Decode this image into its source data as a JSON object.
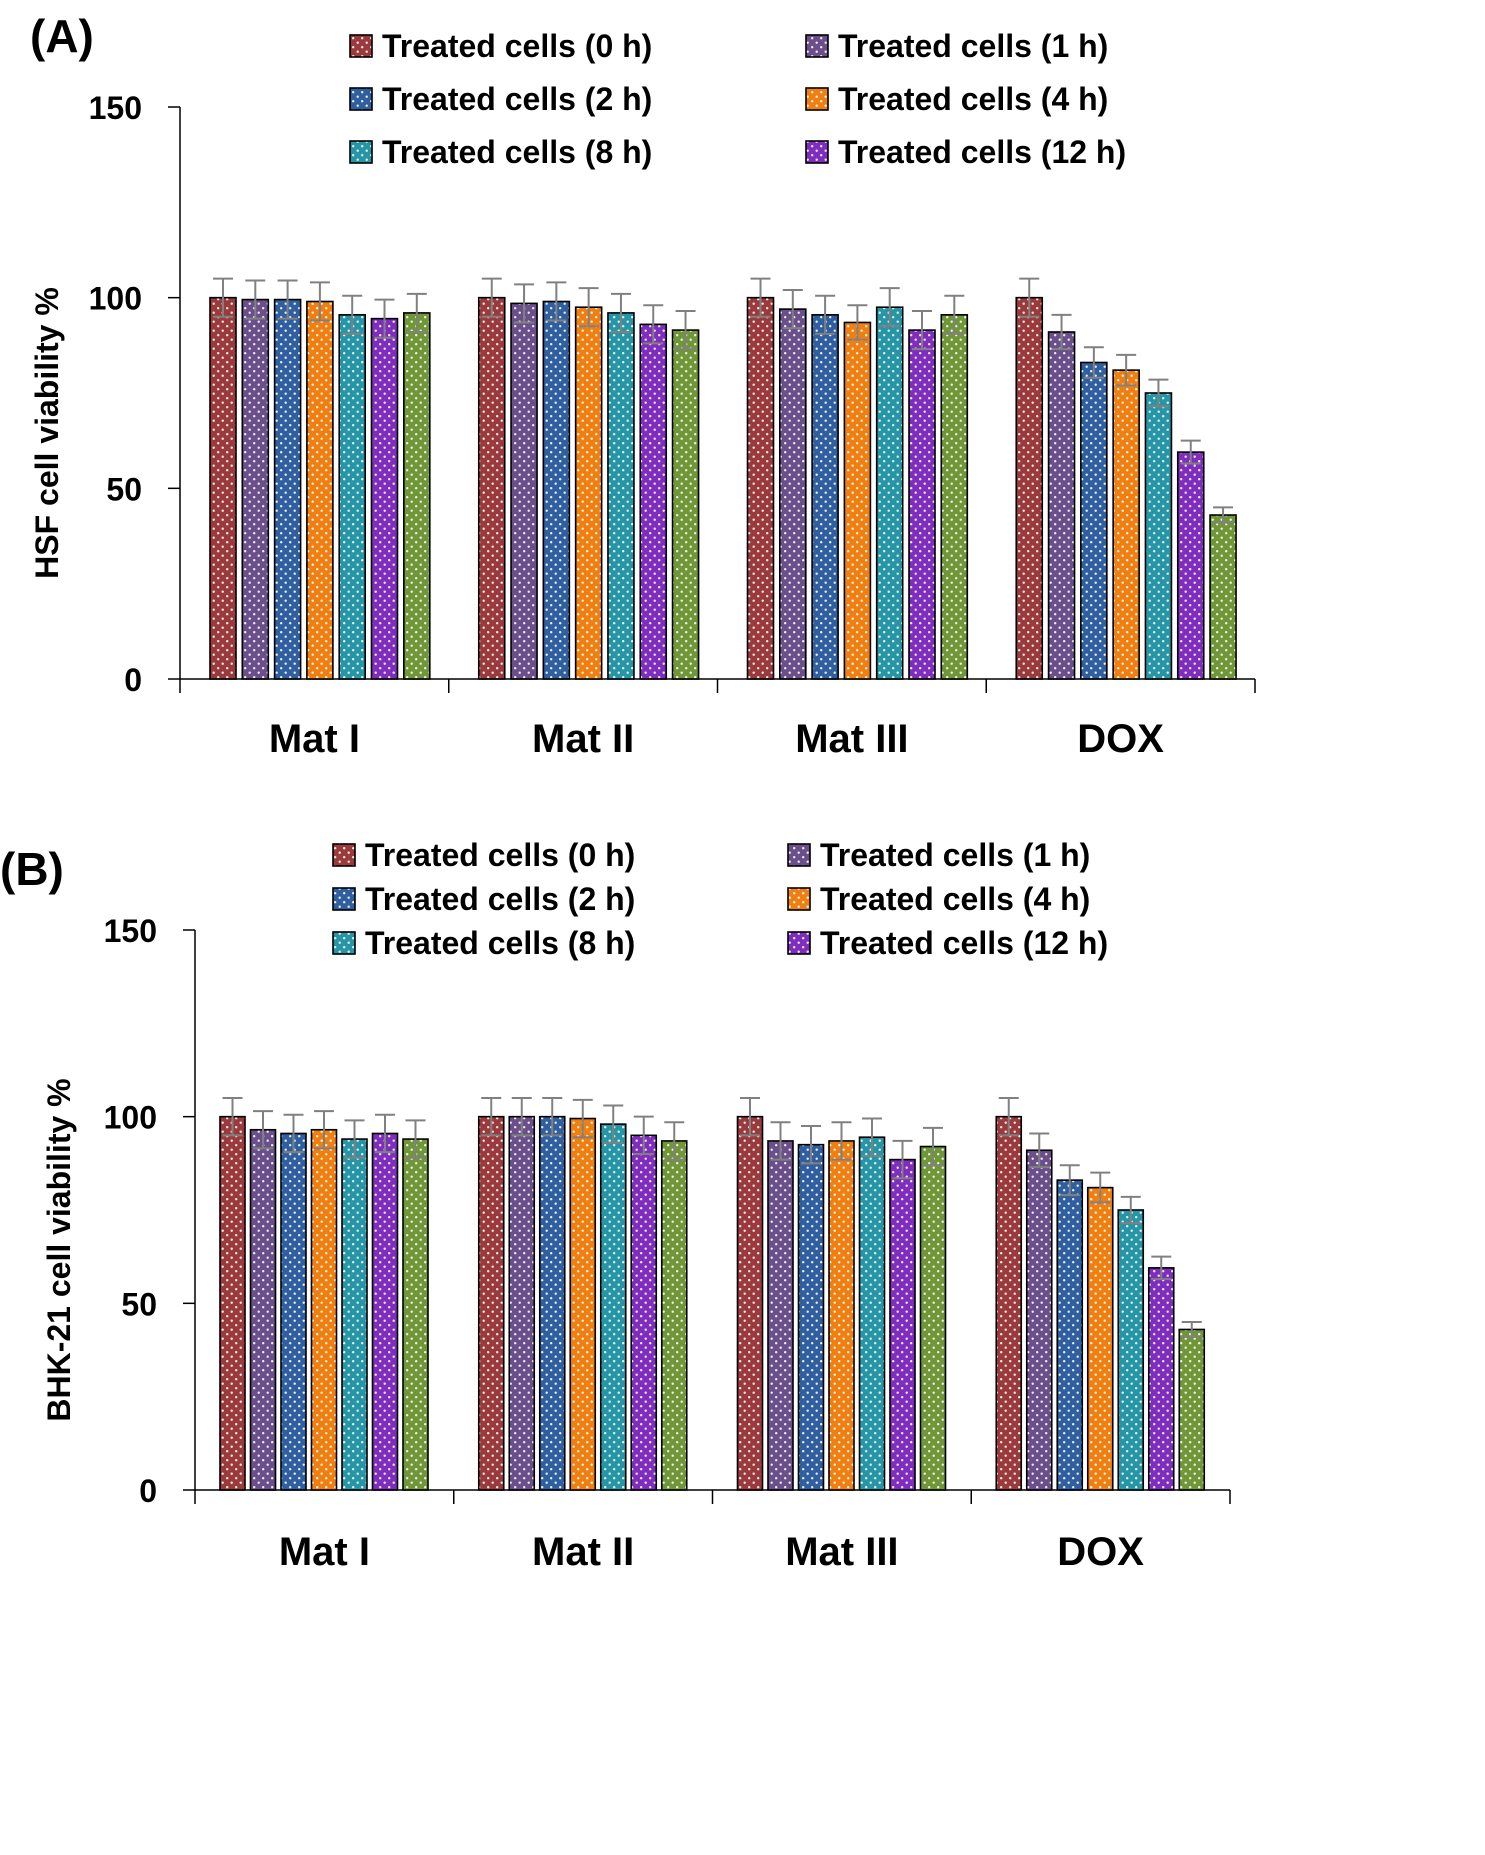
{
  "colors": {
    "series": [
      "#9b3a3c",
      "#6a4f8a",
      "#2f5f9f",
      "#f07f12",
      "#2696a6",
      "#7e2dbd",
      "#6f9637"
    ],
    "axis": "#000000",
    "errorbar": "#808080",
    "text": "#000000"
  },
  "chart_data": [
    {
      "type": "bar",
      "panel_label": "(A)",
      "ylabel": "HSF cell viability %",
      "xlabel": "",
      "ylim": [
        0,
        150
      ],
      "yticks": [
        0,
        50,
        100,
        150
      ],
      "categories": [
        "Mat I",
        "Mat II",
        "Mat III",
        "DOX"
      ],
      "legend": [
        "Treated cells (0 h)",
        "Treated cells (1 h)",
        "Treated cells (2 h)",
        "Treated cells (4 h)",
        "Treated cells (8 h)",
        "Treated cells (12 h)"
      ],
      "legend_placement": "top",
      "series": [
        {
          "name": "Treated cells (0 h)",
          "values": [
            100,
            100,
            100,
            100
          ],
          "errors": [
            5,
            5,
            5,
            5
          ]
        },
        {
          "name": "Treated cells (1 h)",
          "values": [
            99.5,
            98.5,
            97,
            91
          ],
          "errors": [
            5,
            5,
            5,
            4.5
          ]
        },
        {
          "name": "Treated cells (2 h)",
          "values": [
            99.5,
            99,
            95.5,
            83
          ],
          "errors": [
            5,
            5,
            5,
            4
          ]
        },
        {
          "name": "Treated cells (4 h)",
          "values": [
            99,
            97.5,
            93.5,
            81
          ],
          "errors": [
            5,
            5,
            4.5,
            4
          ]
        },
        {
          "name": "Treated cells (8 h)",
          "values": [
            95.5,
            96,
            97.5,
            75
          ],
          "errors": [
            5,
            5,
            5,
            3.5
          ]
        },
        {
          "name": "Treated cells (12 h)",
          "values": [
            94.5,
            93,
            91.5,
            59.5
          ],
          "errors": [
            5,
            5,
            5,
            3
          ]
        },
        {
          "name": "",
          "values": [
            96,
            91.5,
            95.5,
            43
          ],
          "errors": [
            5,
            5,
            5,
            2
          ]
        }
      ]
    },
    {
      "type": "bar",
      "panel_label": "(B)",
      "ylabel": "BHK-21 cell viability %",
      "xlabel": "",
      "ylim": [
        0,
        150
      ],
      "yticks": [
        0,
        50,
        100,
        150
      ],
      "categories": [
        "Mat I",
        "Mat II",
        "Mat III",
        "DOX"
      ],
      "legend": [
        "Treated cells (0 h)",
        "Treated cells (1 h)",
        "Treated cells (2 h)",
        "Treated cells (4 h)",
        "Treated cells (8 h)",
        "Treated cells (12 h)"
      ],
      "legend_placement": "top",
      "series": [
        {
          "name": "Treated cells (0 h)",
          "values": [
            100,
            100,
            100,
            100
          ],
          "errors": [
            5,
            5,
            5,
            5
          ]
        },
        {
          "name": "Treated cells (1 h)",
          "values": [
            96.5,
            100,
            93.5,
            91
          ],
          "errors": [
            5,
            5,
            5,
            4.5
          ]
        },
        {
          "name": "Treated cells (2 h)",
          "values": [
            95.5,
            100,
            92.5,
            83
          ],
          "errors": [
            5,
            5,
            5,
            4
          ]
        },
        {
          "name": "Treated cells (4 h)",
          "values": [
            96.5,
            99.5,
            93.5,
            81
          ],
          "errors": [
            5,
            5,
            5,
            4
          ]
        },
        {
          "name": "Treated cells (8 h)",
          "values": [
            94,
            98,
            94.5,
            75
          ],
          "errors": [
            5,
            5,
            5,
            3.5
          ]
        },
        {
          "name": "Treated cells (12 h)",
          "values": [
            95.5,
            95,
            88.5,
            59.5
          ],
          "errors": [
            5,
            5,
            5,
            3
          ]
        },
        {
          "name": "",
          "values": [
            94,
            93.5,
            92,
            43
          ],
          "errors": [
            5,
            5,
            5,
            2
          ]
        }
      ]
    }
  ]
}
